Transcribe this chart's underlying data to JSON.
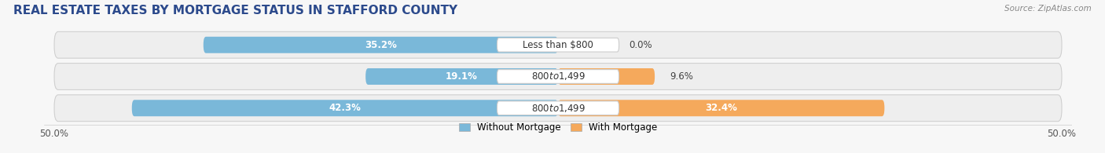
{
  "title": "REAL ESTATE TAXES BY MORTGAGE STATUS IN STAFFORD COUNTY",
  "source": "Source: ZipAtlas.com",
  "rows": [
    {
      "label": "Less than $800",
      "without_mortgage": 35.2,
      "with_mortgage": 0.0
    },
    {
      "label": "$800 to $1,499",
      "without_mortgage": 19.1,
      "with_mortgage": 9.6
    },
    {
      "label": "$800 to $1,499",
      "without_mortgage": 42.3,
      "with_mortgage": 32.4
    }
  ],
  "x_min": -50.0,
  "x_max": 50.0,
  "x_tick_labels": [
    "50.0%",
    "50.0%"
  ],
  "color_without": "#7ab8d9",
  "color_with": "#f5a95c",
  "color_label_bg": "white",
  "bar_height": 0.52,
  "row_bg_color": "#eeeeee",
  "background_color": "#f7f7f7",
  "legend_without": "Without Mortgage",
  "legend_with": "With Mortgage",
  "title_fontsize": 11,
  "label_fontsize": 8.5,
  "value_fontsize": 8.5,
  "tick_fontsize": 8.5,
  "title_color": "#2c4a8c",
  "source_color": "#888888"
}
